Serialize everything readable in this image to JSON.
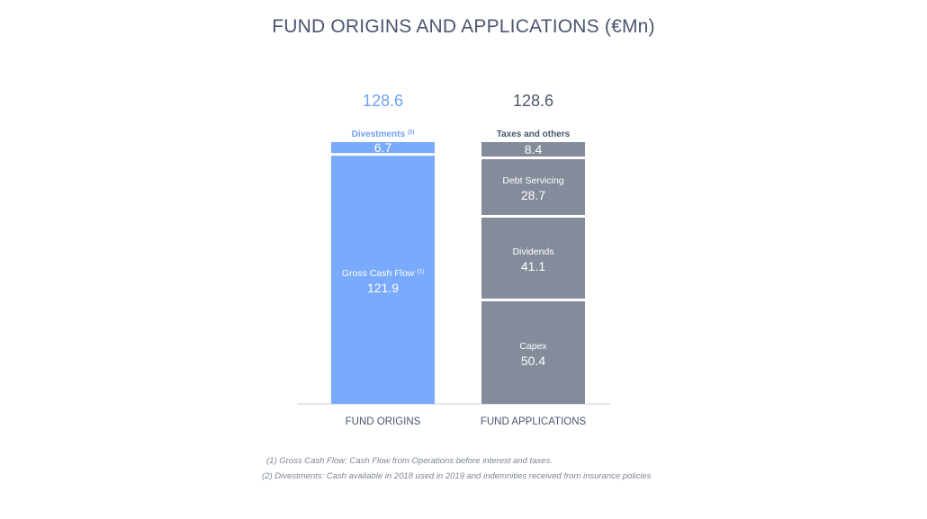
{
  "title": "FUND ORIGINS AND APPLICATIONS (€Mn)",
  "colors": {
    "origins": "#79aafc",
    "origins_text": "#6fa0f5",
    "applications": "#848b9b",
    "applications_text": "#4a5570",
    "axis": "#c8ccd3",
    "label_white": "#ffffff"
  },
  "chart_data": {
    "type": "bar",
    "stacked": true,
    "categories": [
      "FUND ORIGINS",
      "FUND APPLICATIONS"
    ],
    "totals": [
      "128.6",
      "128.6"
    ],
    "ylim": [
      0,
      128.6
    ],
    "grid": false,
    "stacks": [
      {
        "category": "FUND ORIGINS",
        "color_key": "origins",
        "segments": [
          {
            "label": "Gross Cash Flow",
            "superscript": "(1)",
            "value": 121.9,
            "display": "121.9"
          },
          {
            "label": "Divestments",
            "superscript": "(2)",
            "value": 6.7,
            "display": "6.7",
            "label_outside": true
          }
        ]
      },
      {
        "category": "FUND APPLICATIONS",
        "color_key": "applications",
        "segments": [
          {
            "label": "Capex",
            "superscript": "",
            "value": 50.4,
            "display": "50.4"
          },
          {
            "label": "Dividends",
            "superscript": "",
            "value": 41.1,
            "display": "41.1"
          },
          {
            "label": "Debt Servicing",
            "superscript": "",
            "value": 28.7,
            "display": "28.7"
          },
          {
            "label": "Taxes and others",
            "superscript": "",
            "value": 8.4,
            "display": "8.4",
            "label_outside": true
          }
        ]
      }
    ]
  },
  "footnotes": [
    "(1) Gross Cash Flow: Cash Flow from Operations before interest and taxes.",
    "(2) Divestments: Cash available in 2018 used in 2019 and indemnities received from insurance policies"
  ]
}
